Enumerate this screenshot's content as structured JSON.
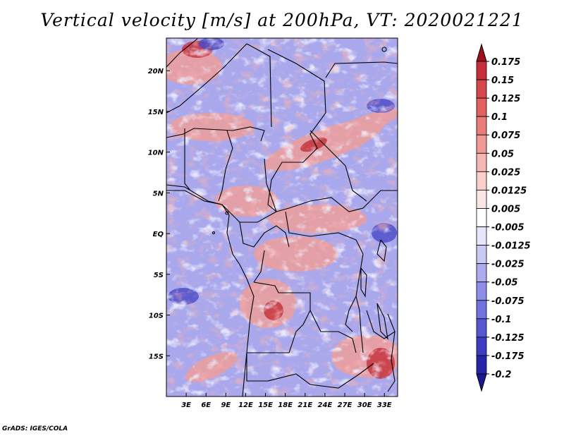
{
  "title": "Vertical velocity [m/s] at 200hPa, VT: 2020021221",
  "credit": "GrADS: IGES/COLA",
  "map": {
    "lon_range": [
      0,
      35
    ],
    "lat_range": [
      -20,
      24
    ],
    "lon_ticks": [
      {
        "value": 3,
        "label": "3E"
      },
      {
        "value": 6,
        "label": "6E"
      },
      {
        "value": 9,
        "label": "9E"
      },
      {
        "value": 12,
        "label": "12E"
      },
      {
        "value": 15,
        "label": "15E"
      },
      {
        "value": 18,
        "label": "18E"
      },
      {
        "value": 21,
        "label": "21E"
      },
      {
        "value": 24,
        "label": "24E"
      },
      {
        "value": 27,
        "label": "27E"
      },
      {
        "value": 30,
        "label": "30E"
      },
      {
        "value": 33,
        "label": "33E"
      }
    ],
    "lat_ticks": [
      {
        "value": 20,
        "label": "20N"
      },
      {
        "value": 15,
        "label": "15N"
      },
      {
        "value": 10,
        "label": "10N"
      },
      {
        "value": 5,
        "label": "5N"
      },
      {
        "value": 0,
        "label": "EQ"
      },
      {
        "value": -5,
        "label": "5S"
      },
      {
        "value": -10,
        "label": "10S"
      },
      {
        "value": -15,
        "label": "15S"
      }
    ]
  },
  "colorbar": {
    "levels": [
      {
        "label": "0.175",
        "color": "#b2182b"
      },
      {
        "label": "0.15",
        "color": "#c5303a"
      },
      {
        "label": "0.125",
        "color": "#d6474c"
      },
      {
        "label": "0.1",
        "color": "#e2605f"
      },
      {
        "label": "0.075",
        "color": "#ea7d79"
      },
      {
        "label": "0.05",
        "color": "#f19a95"
      },
      {
        "label": "0.025",
        "color": "#f6b6b1"
      },
      {
        "label": "0.0125",
        "color": "#f9cecb"
      },
      {
        "label": "0.005",
        "color": "#fce6e4"
      },
      {
        "label": "-0.005",
        "color": "#ffffff"
      },
      {
        "label": "-0.0125",
        "color": "#e6e6fa"
      },
      {
        "label": "-0.025",
        "color": "#c9c9f3"
      },
      {
        "label": "-0.05",
        "color": "#ababee"
      },
      {
        "label": "-0.075",
        "color": "#8e8ee8"
      },
      {
        "label": "-0.1",
        "color": "#7373df"
      },
      {
        "label": "-0.125",
        "color": "#5757d2"
      },
      {
        "label": "-0.175",
        "color": "#3c3cc2"
      },
      {
        "label": "-0.2",
        "color": "#2525a8"
      }
    ],
    "over_color": "#a01020",
    "under_color": "#1a1a90"
  }
}
